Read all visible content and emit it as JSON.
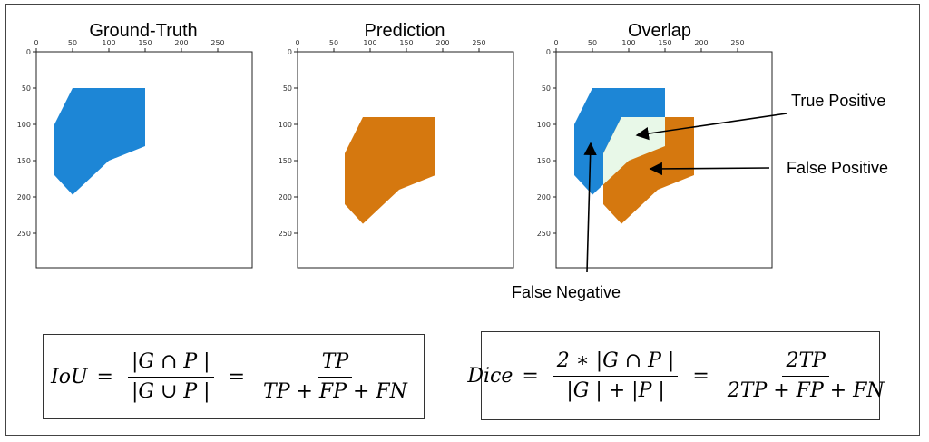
{
  "panels": [
    {
      "title": "Ground-Truth",
      "x_ticks": [
        "0",
        "50",
        "100",
        "150",
        "200",
        "250"
      ],
      "y_ticks": [
        "0",
        "50",
        "100",
        "150",
        "200",
        "250"
      ]
    },
    {
      "title": "Prediction",
      "x_ticks": [
        "0",
        "50",
        "100",
        "150",
        "200",
        "250"
      ],
      "y_ticks": [
        "0",
        "50",
        "100",
        "150",
        "200",
        "250"
      ]
    },
    {
      "title": "Overlap",
      "x_ticks": [
        "0",
        "50",
        "100",
        "150",
        "200",
        "250"
      ],
      "y_ticks": [
        "0",
        "50",
        "100",
        "150",
        "200",
        "250"
      ]
    }
  ],
  "annotations": {
    "true_positive": "True Positive",
    "false_positive": "False Positive",
    "false_negative": "False Negative"
  },
  "colors": {
    "ground_truth": "#1d86d6",
    "prediction": "#d5780f",
    "true_positive": "#e8f8e8"
  },
  "regions": {
    "ground_truth": [
      [
        50,
        50
      ],
      [
        150,
        50
      ],
      [
        150,
        130
      ],
      [
        100,
        150
      ],
      [
        50,
        197
      ],
      [
        25,
        170
      ],
      [
        25,
        100
      ]
    ],
    "prediction": [
      [
        90,
        90
      ],
      [
        190,
        90
      ],
      [
        190,
        170
      ],
      [
        140,
        190
      ],
      [
        90,
        237
      ],
      [
        65,
        210
      ],
      [
        65,
        140
      ]
    ]
  },
  "formulas": {
    "iou": {
      "lhs": "IoU",
      "eq": "=",
      "num1": "|G ∩ P |",
      "den1": "|G ∪ P |",
      "eq2": "=",
      "num2": "TP",
      "den2": "TP + FP + FN"
    },
    "dice": {
      "lhs": "Dice",
      "eq": "=",
      "num1": "2 ∗ |G ∩ P |",
      "den1": "|G | + |P |",
      "eq2": "=",
      "num2": "2TP",
      "den2": "2TP + FP + FN"
    }
  }
}
